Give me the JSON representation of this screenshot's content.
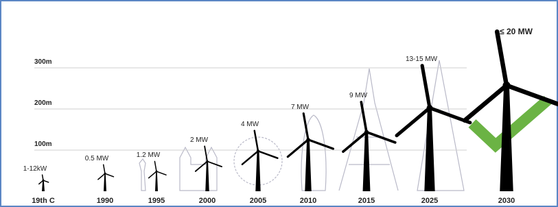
{
  "chart_data": {
    "type": "turbine",
    "categories": [
      "19th C",
      "1990",
      "1995",
      "2000",
      "2005",
      "2010",
      "2015",
      "2025",
      "2030"
    ],
    "values": [
      40,
      65,
      73,
      110,
      148,
      190,
      218,
      307,
      390
    ],
    "annotations": [
      "1-12kW",
      "0.5 MW",
      "1.2 MW",
      "2 MW",
      "4 MW",
      "7 MW",
      "9 MW",
      "13-15 MW",
      "≤ 20 MW"
    ],
    "color": "#000000",
    "ylim": [
      0,
      400
    ],
    "yticks": [
      {
        "value": 100,
        "label": "100m"
      },
      {
        "value": 200,
        "label": "200m"
      },
      {
        "value": 300,
        "label": "300m"
      }
    ],
    "grid": true
  }
}
